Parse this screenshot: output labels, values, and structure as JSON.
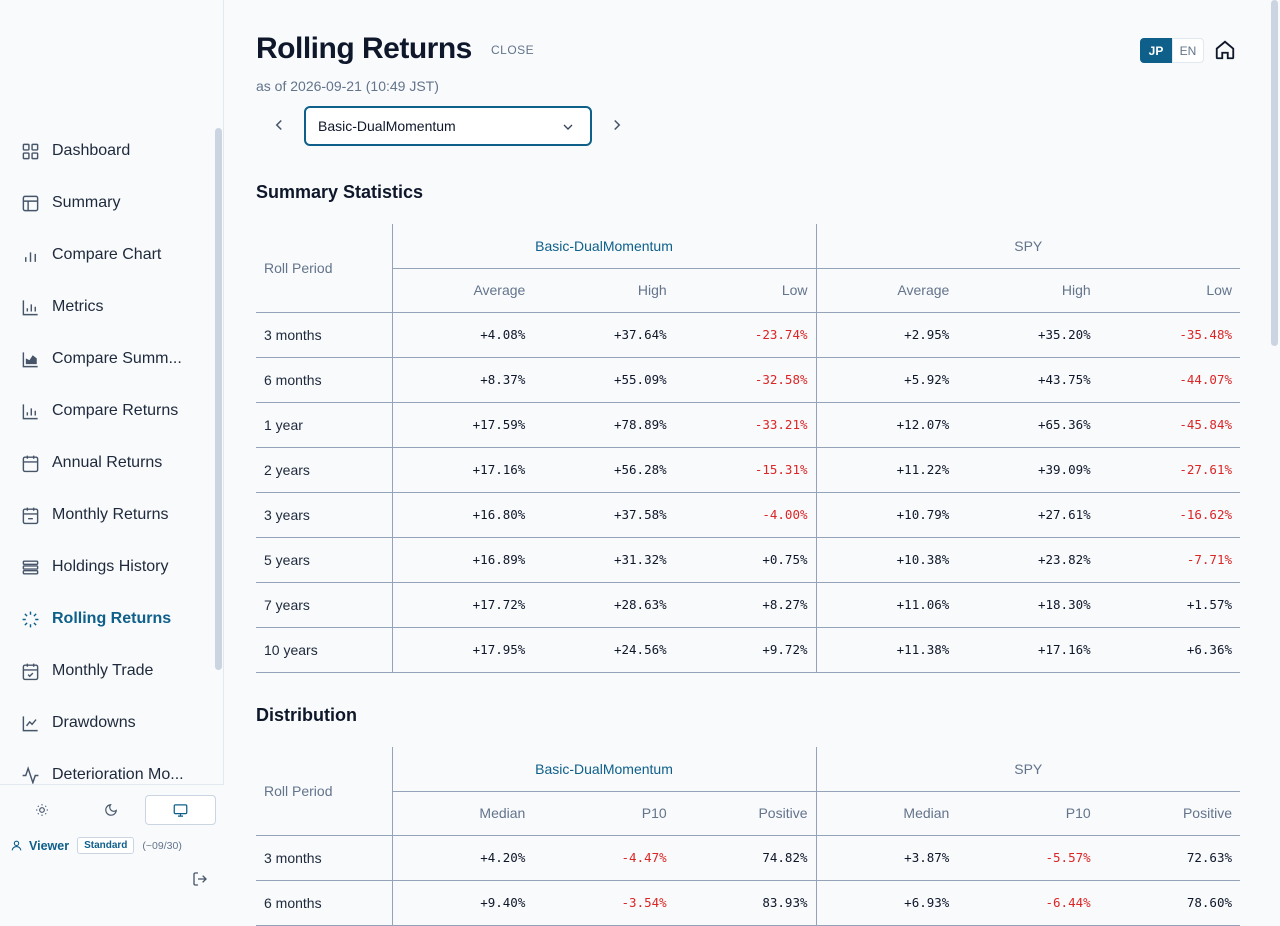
{
  "sidebar": {
    "items": [
      {
        "label": "Dashboard",
        "icon": "grid-icon"
      },
      {
        "label": "Summary",
        "icon": "layout-icon"
      },
      {
        "label": "Compare Chart",
        "icon": "bar-chart-icon"
      },
      {
        "label": "Metrics",
        "icon": "bar-chart-axis-icon"
      },
      {
        "label": "Compare Summ...",
        "icon": "area-chart-icon"
      },
      {
        "label": "Compare Returns",
        "icon": "bar-chart-axis-icon"
      },
      {
        "label": "Annual Returns",
        "icon": "calendar-icon"
      },
      {
        "label": "Monthly Returns",
        "icon": "calendar-minus-icon"
      },
      {
        "label": "Holdings History",
        "icon": "list-icon"
      },
      {
        "label": "Rolling Returns",
        "icon": "loader-icon",
        "active": true
      },
      {
        "label": "Monthly Trade",
        "icon": "calendar-check-icon"
      },
      {
        "label": "Drawdowns",
        "icon": "line-chart-icon"
      },
      {
        "label": "Deterioration Mo...",
        "icon": "activity-icon"
      }
    ],
    "footer": {
      "user_name": "Viewer",
      "plan": "Standard",
      "plan_until": "(~09/30)"
    }
  },
  "header": {
    "title": "Rolling Returns",
    "close_label": "CLOSE",
    "as_of": "as of 2026-09-21 (10:49 JST)",
    "lang_jp": "JP",
    "lang_en": "EN"
  },
  "selector": {
    "value": "Basic-DualMomentum"
  },
  "summary": {
    "title": "Summary Statistics",
    "period_header": "Roll Period",
    "strategy_name": "Basic-DualMomentum",
    "benchmark_name": "SPY",
    "columns": [
      "Average",
      "High",
      "Low",
      "Average",
      "High",
      "Low"
    ],
    "rows": [
      {
        "period": "3 months",
        "values": [
          "+4.08%",
          "+37.64%",
          "-23.74%",
          "+2.95%",
          "+35.20%",
          "-35.48%"
        ]
      },
      {
        "period": "6 months",
        "values": [
          "+8.37%",
          "+55.09%",
          "-32.58%",
          "+5.92%",
          "+43.75%",
          "-44.07%"
        ]
      },
      {
        "period": "1 year",
        "values": [
          "+17.59%",
          "+78.89%",
          "-33.21%",
          "+12.07%",
          "+65.36%",
          "-45.84%"
        ]
      },
      {
        "period": "2 years",
        "values": [
          "+17.16%",
          "+56.28%",
          "-15.31%",
          "+11.22%",
          "+39.09%",
          "-27.61%"
        ]
      },
      {
        "period": "3 years",
        "values": [
          "+16.80%",
          "+37.58%",
          "-4.00%",
          "+10.79%",
          "+27.61%",
          "-16.62%"
        ]
      },
      {
        "period": "5 years",
        "values": [
          "+16.89%",
          "+31.32%",
          "+0.75%",
          "+10.38%",
          "+23.82%",
          "-7.71%"
        ]
      },
      {
        "period": "7 years",
        "values": [
          "+17.72%",
          "+28.63%",
          "+8.27%",
          "+11.06%",
          "+18.30%",
          "+1.57%"
        ]
      },
      {
        "period": "10 years",
        "values": [
          "+17.95%",
          "+24.56%",
          "+9.72%",
          "+11.38%",
          "+17.16%",
          "+6.36%"
        ]
      }
    ]
  },
  "distribution": {
    "title": "Distribution",
    "period_header": "Roll Period",
    "strategy_name": "Basic-DualMomentum",
    "benchmark_name": "SPY",
    "columns": [
      "Median",
      "P10",
      "Positive",
      "Median",
      "P10",
      "Positive"
    ],
    "rows": [
      {
        "period": "3 months",
        "values": [
          "+4.20%",
          "-4.47%",
          "74.82%",
          "+3.87%",
          "-5.57%",
          "72.63%"
        ]
      },
      {
        "period": "6 months",
        "values": [
          "+9.40%",
          "-3.54%",
          "83.93%",
          "+6.93%",
          "-6.44%",
          "78.60%"
        ]
      }
    ]
  },
  "colors": {
    "accent": "#0e5f8a",
    "negative": "#dc2626"
  }
}
